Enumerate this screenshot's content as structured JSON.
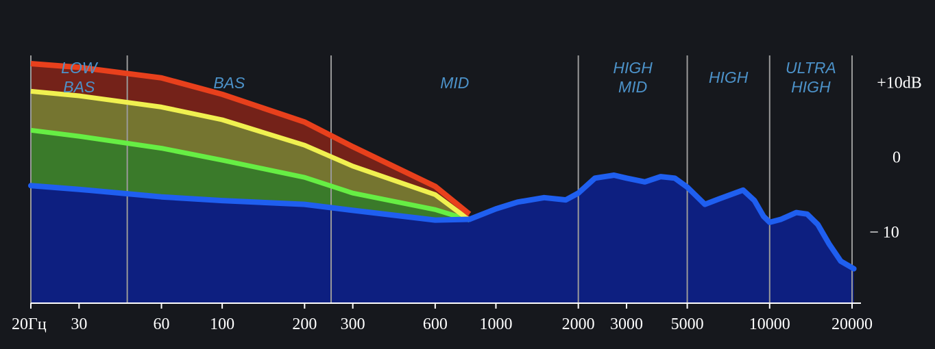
{
  "chart_data": {
    "type": "area",
    "x_scale": "log",
    "xlim": [
      20,
      20000
    ],
    "x_ticks": [
      {
        "value": 20,
        "label": "20Гц"
      },
      {
        "value": 30,
        "label": "30"
      },
      {
        "value": 60,
        "label": "60"
      },
      {
        "value": 100,
        "label": "100"
      },
      {
        "value": 200,
        "label": "200"
      },
      {
        "value": 300,
        "label": "300"
      },
      {
        "value": 600,
        "label": "600"
      },
      {
        "value": 1000,
        "label": "1000"
      },
      {
        "value": 2000,
        "label": "2000"
      },
      {
        "value": 3000,
        "label": "3000"
      },
      {
        "value": 5000,
        "label": "5000"
      },
      {
        "value": 10000,
        "label": "10000"
      },
      {
        "value": 20000,
        "label": "20000"
      }
    ],
    "y_ticks": [
      {
        "value": 10,
        "label": "+10dB"
      },
      {
        "value": 0,
        "label": "0"
      },
      {
        "value": -10,
        "label": "− 10"
      }
    ],
    "ylim": [
      -19.5,
      21
    ],
    "bands": [
      {
        "label": [
          "LOW",
          "BAS"
        ],
        "start": 20,
        "end": 45
      },
      {
        "label": [
          "BAS"
        ],
        "start": 45,
        "end": 250
      },
      {
        "label": [
          "MID"
        ],
        "start": 250,
        "end": 2000
      },
      {
        "label": [
          "HIGH",
          "MID"
        ],
        "start": 2000,
        "end": 5000
      },
      {
        "label": [
          "HIGH"
        ],
        "start": 5000,
        "end": 10000
      },
      {
        "label": [
          "ULTRA",
          "HIGH"
        ],
        "start": 10000,
        "end": 20000
      }
    ],
    "band_dividers": [
      20,
      45,
      250,
      2000,
      5000,
      10000,
      20000
    ],
    "colors": {
      "background": "#16181d",
      "base_fill": "#0d1f80",
      "base_line": "#1f5ff0",
      "green_fill": "#3a7a2a",
      "green_line": "#66ee44",
      "yellow_fill": "#757530",
      "yellow_line": "#f0f050",
      "red_fill": "#742219",
      "red_line": "#e8401c",
      "divider": "#9a9a9a",
      "band_label": "#4c92c9",
      "axis": "#ffffff",
      "text": "#ffffff"
    },
    "series": [
      {
        "key": "base",
        "x": [
          20,
          30,
          60,
          100,
          200,
          300,
          600,
          800,
          1000,
          1200,
          1500,
          1800,
          2000,
          2300,
          2700,
          3000,
          3500,
          4000,
          4500,
          5000,
          5800,
          6500,
          8000,
          8800,
          9500,
          10000,
          11000,
          12500,
          13700,
          15000,
          16500,
          18200,
          20300
        ],
        "y": [
          -3.8,
          -4.3,
          -5.3,
          -5.8,
          -6.3,
          -7.1,
          -8.4,
          -8.3,
          -6.9,
          -6.0,
          -5.4,
          -5.7,
          -4.8,
          -2.8,
          -2.4,
          -2.8,
          -3.3,
          -2.6,
          -2.8,
          -4.0,
          -6.3,
          -5.6,
          -4.4,
          -5.8,
          -7.9,
          -8.7,
          -8.3,
          -7.4,
          -7.6,
          -9.0,
          -11.6,
          -13.9,
          -14.9
        ]
      },
      {
        "key": "green",
        "x": [
          20,
          30,
          60,
          100,
          200,
          300,
          600,
          800
        ],
        "y": [
          3.6,
          2.8,
          1.2,
          -0.4,
          -2.7,
          -4.8,
          -7.0,
          -8.4
        ]
      },
      {
        "key": "yellow",
        "x": [
          20,
          30,
          60,
          100,
          200,
          300,
          600,
          800
        ],
        "y": [
          8.8,
          8.2,
          6.7,
          5.0,
          1.6,
          -1.2,
          -5.0,
          -8.4
        ]
      },
      {
        "key": "red",
        "x": [
          20,
          30,
          60,
          100,
          200,
          300,
          600,
          800
        ],
        "y": [
          12.5,
          12.0,
          10.6,
          8.4,
          4.7,
          1.4,
          -3.9,
          -7.6
        ]
      }
    ]
  }
}
